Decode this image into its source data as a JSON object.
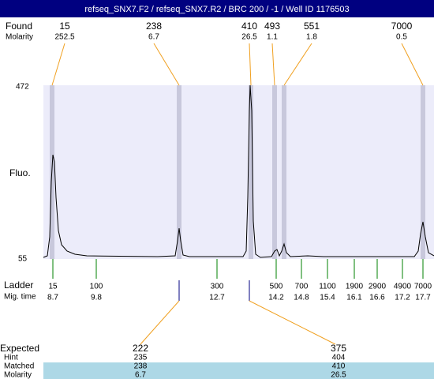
{
  "title": "refseq_SNX7.F2 / refseq_SNX7.R2 / BRC 200 / -1 / Well ID 1176503",
  "found": {
    "label": "Found",
    "sublabel": "Molarity",
    "peaks": [
      {
        "size": "15",
        "molarity": "252.5"
      },
      {
        "size": "238",
        "molarity": "6.7"
      },
      {
        "size": "410",
        "molarity": "26.5"
      },
      {
        "size": "493",
        "molarity": "1.1"
      },
      {
        "size": "551",
        "molarity": "1.8"
      },
      {
        "size": "7000",
        "molarity": "0.5"
      }
    ]
  },
  "plot": {
    "ylabel": "Fluo.",
    "ymax": "472",
    "ymin": "55"
  },
  "ladder": {
    "label": "Ladder",
    "sublabel": "Mig. time",
    "items": [
      {
        "size": "15",
        "time": "8.7"
      },
      {
        "size": "100",
        "time": "9.8"
      },
      {
        "size": "300",
        "time": "12.7"
      },
      {
        "size": "500",
        "time": "14.2"
      },
      {
        "size": "700",
        "time": "14.8"
      },
      {
        "size": "1100",
        "time": "15.4"
      },
      {
        "size": "1900",
        "time": "16.1"
      },
      {
        "size": "2900",
        "time": "16.6"
      },
      {
        "size": "4900",
        "time": "17.2"
      },
      {
        "size": "7000",
        "time": "17.7"
      }
    ]
  },
  "expected": {
    "labels": [
      "Expected",
      "Hint",
      "Matched",
      "Molarity"
    ],
    "items": [
      {
        "expected": "222",
        "hint": "235",
        "matched": "238",
        "molarity": "6.7"
      },
      {
        "expected": "375",
        "hint": "404",
        "matched": "410",
        "molarity": "26.5"
      }
    ]
  }
}
